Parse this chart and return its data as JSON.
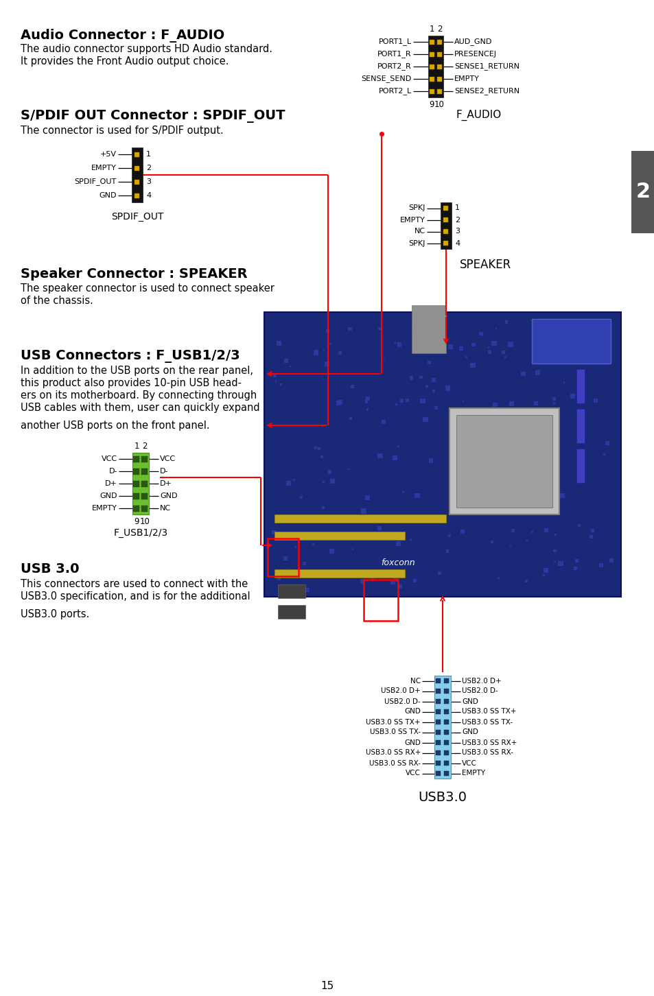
{
  "bg_color": "#ffffff",
  "page_num": "15",
  "tab_color": "#555555",
  "tab_text": "2",
  "audio_title_plain": "Audio Connector : ",
  "audio_title_bold": "F_AUDIO",
  "audio_desc1": "The audio connector supports HD Audio standard.",
  "audio_desc2": "It provides the Front Audio output choice.",
  "audio_left_pins": [
    "PORT1_L",
    "PORT1_R",
    "PORT2_R",
    "SENSE_SEND",
    "PORT2_L"
  ],
  "audio_right_pins": [
    "AUD_GND",
    "PRESENCEJ",
    "SENSE1_RETURN",
    "EMPTY",
    "SENSE2_RETURN"
  ],
  "audio_label": "F_AUDIO",
  "spdif_title_plain": "S/PDIF OUT Connector : ",
  "spdif_title_bold": "SPDIF_OUT",
  "spdif_desc": "The connector is used for S/PDIF output.",
  "spdif_left_pins": [
    "+5V",
    "EMPTY",
    "SPDIF_OUT",
    "GND"
  ],
  "spdif_pin_nums": [
    "1",
    "2",
    "3",
    "4"
  ],
  "spdif_label": "SPDIF_OUT",
  "speaker_title_plain": "Speaker Connector : ",
  "speaker_title_bold": "SPEAKER",
  "speaker_desc1": "The speaker connector is used to connect speaker",
  "speaker_desc2": "of the chassis.",
  "speaker_left_pins": [
    "SPKJ",
    "EMPTY",
    "NC",
    "SPKJ"
  ],
  "speaker_pin_nums": [
    "1",
    "2",
    "3",
    "4"
  ],
  "speaker_label": "SPEAKER",
  "usb_title_plain": "USB Connectors : ",
  "usb_title_bold": "F_USB1/2/3",
  "usb_desc1": "In addition to the USB ports on the rear panel,",
  "usb_desc2": "this product also provides 10-pin USB head-",
  "usb_desc3": "ers on its motherboard. By connecting through",
  "usb_desc4": "USB cables with them, user can quickly expand",
  "usb_desc5": "another USB ports on the front panel.",
  "usb_left_pins": [
    "VCC",
    "D-",
    "D+",
    "GND",
    "EMPTY"
  ],
  "usb_right_pins": [
    "VCC",
    "D-",
    "D+",
    "GND",
    "NC"
  ],
  "usb_label": "F_USB1/2/3",
  "usb_connector_color": "#6abf2e",
  "usb30_title": "USB 3.0",
  "usb30_desc1": "This connectors are used to connect with the",
  "usb30_desc2": "USB3.0 specification, and is for the additional",
  "usb30_desc3": "USB3.0 ports.",
  "usb30_left_pins": [
    "NC",
    "USB2.0 D+",
    "USB2.0 D-",
    "GND",
    "USB3.0 SS TX+",
    "USB3.0 SS TX-",
    "GND",
    "USB3.0 SS RX+",
    "USB3.0 SS RX-",
    "VCC"
  ],
  "usb30_right_pins": [
    "USB2.0 D+",
    "USB2.0 D-",
    "GND",
    "USB3.0 SS TX+",
    "USB3.0 SS TX-",
    "GND",
    "USB3.0 SS RX+",
    "USB3.0 SS RX-",
    "VCC",
    "EMPTY"
  ],
  "usb30_label": "USB3.0",
  "usb30_connector_color": "#87ceeb"
}
